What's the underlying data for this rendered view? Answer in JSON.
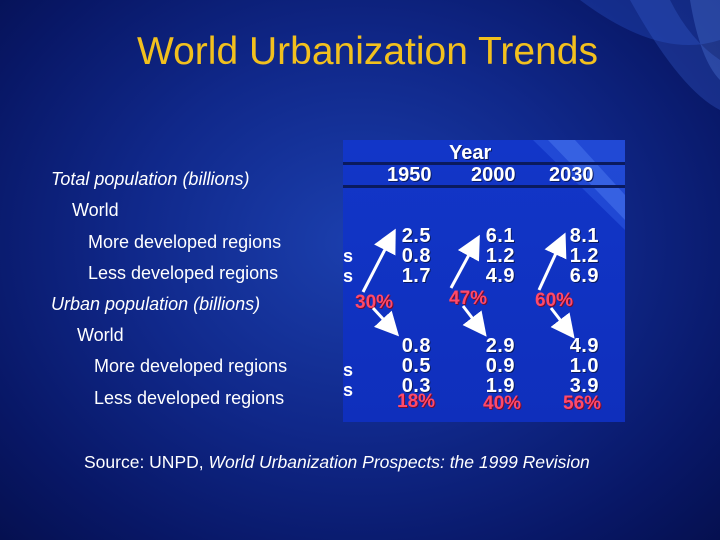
{
  "slide": {
    "title": "World Urbanization Trends",
    "colors": {
      "title": "#f2c01e",
      "background": "#10288a",
      "percent": "#ff4a6a",
      "panel": "#1236c8"
    }
  },
  "labels": {
    "total_population": "Total population (billions)",
    "total_world": "World",
    "total_more_developed": "More developed regions",
    "total_less_developed": "Less developed regions",
    "urban_population": "Urban population (billions)",
    "urban_world": "World",
    "urban_more_developed": "More developed regions",
    "urban_less_developed": "Less developed regions"
  },
  "table": {
    "header": "Year",
    "years": [
      "1950",
      "2000",
      "2030"
    ],
    "row_stub": "s",
    "total": {
      "world": [
        "2.5",
        "6.1",
        "8.1"
      ],
      "more_developed": [
        "0.8",
        "1.2",
        "1.2"
      ],
      "less_developed": [
        "1.7",
        "4.9",
        "6.9"
      ]
    },
    "urban": {
      "world": [
        "0.8",
        "2.9",
        "4.9"
      ],
      "more_developed": [
        "0.5",
        "0.9",
        "1.0"
      ],
      "less_developed": [
        "0.3",
        "1.9",
        "3.9"
      ]
    },
    "urban_share_world": [
      "30%",
      "47%",
      "60%"
    ],
    "urban_share_less_developed": [
      "18%",
      "40%",
      "56%"
    ]
  },
  "source": {
    "prefix": "Source: UNPD, ",
    "publication": "World Urbanization Prospects: the 1999 Revision"
  }
}
